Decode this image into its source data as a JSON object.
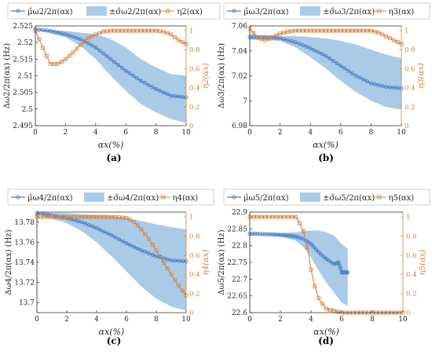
{
  "colors": {
    "mean": "#4a7cc3",
    "band": "#a9cbe8",
    "eta": "#d9803a",
    "axis": "#262626",
    "eta_axis": "#d9803a"
  },
  "legend": {
    "mean_prefix": "μ̂",
    "std_prefix": "±σ̂",
    "eta_prefix": "η"
  },
  "chart_data": [
    {
      "panel": "(a)",
      "type": "line",
      "xlabel": "αx(%)",
      "ylabel": "Δω2/2π(αx) (Hz)",
      "ylabel_right": "η2(αx)",
      "legend": [
        "μ̂ω2/2π(αx)",
        "±σ̂ω2/2π(αx)",
        "η2(αx)"
      ],
      "mode": 2,
      "xlim": [
        0,
        10
      ],
      "ylim": [
        2.495,
        2.525
      ],
      "y2lim": [
        0,
        1.05
      ],
      "xticks": [
        0,
        2,
        4,
        6,
        8,
        10
      ],
      "yticks": [
        2.495,
        2.5,
        2.505,
        2.51,
        2.515,
        2.52,
        2.525
      ],
      "ytick_labels": [
        "2.495",
        "2.5",
        "2.505",
        "2.51",
        "2.515",
        "2.52",
        "2.525"
      ],
      "y2ticks": [
        0,
        0.2,
        0.4,
        0.6,
        0.8,
        1
      ],
      "y2tick_labels": [
        "0",
        "0.2",
        "0.4",
        "0.6",
        "0.8",
        "1"
      ],
      "mean": {
        "x": [
          0,
          1,
          2,
          3,
          4,
          5,
          6,
          7,
          8,
          9,
          10
        ],
        "y": [
          2.524,
          2.5235,
          2.5225,
          2.521,
          2.5185,
          2.515,
          2.5115,
          2.5085,
          2.506,
          2.504,
          2.5035
        ]
      },
      "band_upper": {
        "x": [
          0,
          2,
          3,
          4,
          5,
          6,
          7,
          8,
          9,
          10
        ],
        "y": [
          2.524,
          2.5235,
          2.523,
          2.5225,
          2.521,
          2.5185,
          2.515,
          2.5125,
          2.5105,
          2.51
        ]
      },
      "band_lower": {
        "x": [
          0,
          2,
          3,
          4,
          5,
          6,
          7,
          8,
          9,
          10
        ],
        "y": [
          2.524,
          2.5215,
          2.519,
          2.515,
          2.51,
          2.5055,
          2.5015,
          2.499,
          2.497,
          2.4958
        ]
      },
      "eta": {
        "x": [
          0,
          0.5,
          1,
          1.5,
          2,
          2.5,
          3,
          3.5,
          4,
          4.5,
          5,
          5.5,
          6,
          7,
          8,
          8.5,
          9,
          9.5,
          10
        ],
        "y": [
          1.0,
          0.82,
          0.65,
          0.65,
          0.7,
          0.77,
          0.85,
          0.92,
          0.96,
          0.99,
          1.0,
          1.0,
          1.0,
          1.0,
          1.0,
          0.99,
          0.96,
          0.9,
          0.86
        ]
      }
    },
    {
      "panel": "(b)",
      "type": "line",
      "xlabel": "αx(%)",
      "ylabel": "Δω3/2π(αx) (Hz)",
      "ylabel_right": "η3(αx)",
      "legend": [
        "μ̂ω3/2π(αx)",
        "±σ̂ω3/2π(αx)",
        "η3(αx)"
      ],
      "mode": 3,
      "xlim": [
        0,
        10
      ],
      "ylim": [
        6.98,
        7.06
      ],
      "y2lim": [
        0,
        1.05
      ],
      "xticks": [
        0,
        2,
        4,
        6,
        8,
        10
      ],
      "yticks": [
        6.98,
        7,
        7.02,
        7.04,
        7.06
      ],
      "ytick_labels": [
        "6.98",
        "7",
        "7.02",
        "7.04",
        "7.06"
      ],
      "y2ticks": [
        0,
        0.2,
        0.4,
        0.6,
        0.8,
        1
      ],
      "y2tick_labels": [
        "0",
        "0.2",
        "0.4",
        "0.6",
        "0.8",
        "1"
      ],
      "mean": {
        "x": [
          0,
          1,
          2,
          3,
          4,
          5,
          6,
          7,
          8,
          9,
          10
        ],
        "y": [
          7.051,
          7.051,
          7.05,
          7.047,
          7.042,
          7.036,
          7.028,
          7.02,
          7.014,
          7.011,
          7.01
        ]
      },
      "band_upper": {
        "x": [
          0,
          2,
          3,
          4,
          5,
          6,
          7,
          8,
          9,
          10
        ],
        "y": [
          7.053,
          7.052,
          7.052,
          7.051,
          7.05,
          7.048,
          7.045,
          7.041,
          7.037,
          7.034
        ]
      },
      "band_lower": {
        "x": [
          0,
          2,
          3,
          4,
          5,
          6,
          7,
          8,
          9,
          10
        ],
        "y": [
          7.049,
          7.048,
          7.043,
          7.035,
          7.026,
          7.016,
          7.007,
          7.0,
          6.995,
          6.993
        ]
      },
      "eta": {
        "x": [
          0,
          0.5,
          1,
          1.5,
          2,
          2.5,
          3,
          4,
          5,
          6,
          7,
          8,
          8.5,
          9,
          9.5,
          10
        ],
        "y": [
          1.02,
          0.93,
          0.9,
          0.93,
          0.97,
          0.99,
          1.0,
          1.0,
          1.0,
          1.0,
          1.0,
          1.0,
          0.98,
          0.94,
          0.9,
          0.86
        ]
      }
    },
    {
      "panel": "(c)",
      "type": "line",
      "xlabel": "αx(%)",
      "ylabel": "Δω4/2π(αx) (Hz)",
      "ylabel_right": "η4(αx)",
      "legend": [
        "μ̂ω4/2π(αx)",
        "±σ̂ω4/2π(αx)",
        "η4(αx)"
      ],
      "mode": 4,
      "xlim": [
        0,
        10
      ],
      "ylim": [
        13.69,
        13.79
      ],
      "y2lim": [
        0,
        1.05
      ],
      "xticks": [
        0,
        2,
        4,
        6,
        8,
        10
      ],
      "yticks": [
        13.7,
        13.72,
        13.74,
        13.76,
        13.78
      ],
      "ytick_labels": [
        "13.7",
        "13.72",
        "13.74",
        "13.76",
        "13.78"
      ],
      "y2ticks": [
        0,
        0.2,
        0.4,
        0.6,
        0.8,
        1
      ],
      "y2tick_labels": [
        "0",
        "0.2",
        "0.4",
        "0.6",
        "0.8",
        "1"
      ],
      "mean": {
        "x": [
          0,
          1,
          2,
          3,
          4,
          5,
          6,
          7,
          8,
          9,
          10
        ],
        "y": [
          13.789,
          13.787,
          13.784,
          13.78,
          13.774,
          13.767,
          13.759,
          13.752,
          13.746,
          13.742,
          13.741
        ]
      },
      "band_upper": {
        "x": [
          0,
          2,
          3,
          4,
          5,
          6,
          7,
          8,
          9,
          10
        ],
        "y": [
          13.789,
          13.789,
          13.788,
          13.787,
          13.786,
          13.784,
          13.781,
          13.778,
          13.775,
          13.773
        ]
      },
      "band_lower": {
        "x": [
          0,
          2,
          3,
          4,
          5,
          6,
          7,
          8,
          9,
          10
        ],
        "y": [
          13.788,
          13.779,
          13.771,
          13.76,
          13.746,
          13.731,
          13.716,
          13.704,
          13.696,
          13.692
        ]
      },
      "eta": {
        "x": [
          0,
          1,
          2,
          3,
          4,
          5,
          6,
          6.5,
          7,
          7.5,
          8,
          8.5,
          9,
          9.5,
          10
        ],
        "y": [
          1.0,
          1.0,
          1.0,
          1.0,
          1.0,
          1.0,
          0.99,
          0.95,
          0.87,
          0.77,
          0.65,
          0.52,
          0.4,
          0.28,
          0.18
        ]
      }
    },
    {
      "panel": "(d)",
      "type": "line",
      "xlabel": "αx(%)",
      "ylabel": "Δω5/2π(αx) (Hz)",
      "ylabel_right": "η5(αx)",
      "legend": [
        "μ̂ω5/2π(αx)",
        "±σ̂ω5/2π(αx)",
        "η5(αx)"
      ],
      "mode": 5,
      "xlim": [
        0,
        10
      ],
      "ylim": [
        22.6,
        22.9
      ],
      "y2lim": [
        0,
        1.05
      ],
      "xticks": [
        0,
        2,
        4,
        6,
        8,
        10
      ],
      "yticks": [
        22.6,
        22.65,
        22.7,
        22.75,
        22.8,
        22.85,
        22.9
      ],
      "ytick_labels": [
        "22.6",
        "22.65",
        "22.7",
        "22.75",
        "22.8",
        "22.85",
        "22.9"
      ],
      "y2ticks": [
        0,
        0.2,
        0.4,
        0.6,
        0.8,
        1
      ],
      "y2tick_labels": [
        "0",
        "0.2",
        "0.4",
        "0.6",
        "0.8",
        "1"
      ],
      "mean": {
        "x": [
          0,
          0.5,
          1,
          1.5,
          2,
          2.5,
          3,
          3.5,
          4,
          4.5,
          5,
          5.5,
          5.8,
          6,
          6.2,
          6.4
        ],
        "y": [
          22.835,
          22.835,
          22.834,
          22.833,
          22.832,
          22.83,
          22.827,
          22.82,
          22.805,
          22.78,
          22.76,
          22.745,
          22.75,
          22.72,
          22.72,
          22.72
        ]
      },
      "band_upper": {
        "x": [
          0,
          1,
          2,
          3,
          3.5,
          4,
          4.5,
          5,
          5.5,
          6,
          6.4
        ],
        "y": [
          22.835,
          22.835,
          22.838,
          22.84,
          22.843,
          22.845,
          22.845,
          22.84,
          22.83,
          22.805,
          22.79
        ]
      },
      "band_lower": {
        "x": [
          0,
          1,
          2,
          3,
          3.5,
          4,
          4.5,
          5,
          5.5,
          6,
          6.4
        ],
        "y": [
          22.835,
          22.834,
          22.827,
          22.815,
          22.795,
          22.765,
          22.725,
          22.69,
          22.66,
          22.63,
          22.62
        ]
      },
      "eta": {
        "x": [
          0,
          1,
          2,
          3,
          3.2,
          3.5,
          3.8,
          4,
          4.2,
          4.5,
          4.8,
          5,
          5.5,
          6,
          7,
          8,
          9,
          10
        ],
        "y": [
          1.0,
          1.0,
          1.0,
          1.0,
          0.95,
          0.85,
          0.65,
          0.45,
          0.3,
          0.15,
          0.08,
          0.04,
          0.02,
          0.0,
          0.0,
          0.0,
          0.0,
          0.0
        ]
      }
    }
  ]
}
